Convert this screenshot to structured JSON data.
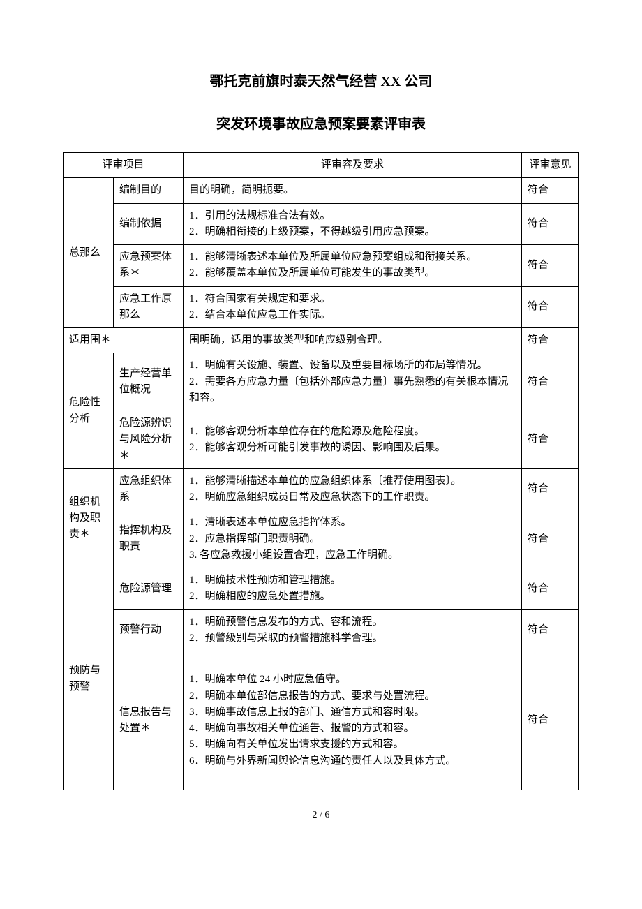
{
  "title_main": "鄂托克前旗时泰天然气经营 XX 公司",
  "title_sub": "突发环境事故应急预案要素评审表",
  "head_col1": "评审项目",
  "head_col2": "评审容及要求",
  "head_col3": "评审意见",
  "groups": [
    {
      "cat": "总那么",
      "rows": [
        {
          "sub": "编制目的",
          "req": "目的明确，简明扼要。",
          "op": "符合"
        },
        {
          "sub": "编制依据",
          "req": "1．引用的法规标准合法有效。\n2．明确相衔接的上级预案，不得越级引用应急预案。",
          "op": "符合"
        },
        {
          "sub": "应急预案体系＊",
          "req": "1．能够清晰表述本单位及所属单位应急预案组成和衔接关系。\n2．能够覆盖本单位及所属单位可能发生的事故类型。",
          "op": "符合"
        },
        {
          "sub": "应急工作原那么",
          "req": "1．符合国家有关规定和要求。\n2．结合本单位应急工作实际。",
          "op": "符合"
        }
      ]
    }
  ],
  "scope_row": {
    "cat": "适用围＊",
    "req": "围明确，适用的事故类型和响应级别合理。",
    "op": "符合"
  },
  "groups2": [
    {
      "cat": "危险性分析",
      "rows": [
        {
          "sub": "生产经营单位概况",
          "req": "1．明确有关设施、装置、设备以及重要目标场所的布局等情况。\n2．需要各方应急力量〔包括外部应急力量〕事先熟悉的有关根本情况和容。",
          "op": "符合"
        },
        {
          "sub": "危险源辨识与风险分析＊",
          "req": "1．能够客观分析本单位存在的危险源及危险程度。\n2．能够客观分析可能引发事故的诱因、影响围及后果。",
          "op": "符合"
        }
      ]
    },
    {
      "cat": "组织机构及职责＊",
      "rows": [
        {
          "sub": "应急组织体系",
          "req": "1．能够清晰描述本单位的应急组织体系〔推荐使用图表〕。\n2．明确应急组织成员日常及应急状态下的工作职责。",
          "op": "符合"
        },
        {
          "sub": "指挥机构及职责",
          "req": "1．清晰表述本单位应急指挥体系。\n2．应急指挥部门职责明确。\n3. 各应急救援小组设置合理，应急工作明确。",
          "op": "符合"
        }
      ]
    },
    {
      "cat": "预防与预警",
      "rows": [
        {
          "sub": "危险源管理",
          "req": "1．明确技术性预防和管理措施。\n2．明确相应的应急处置措施。",
          "op": "符合"
        },
        {
          "sub": "预警行动",
          "req": "1．明确预警信息发布的方式、容和流程。\n2．预警级别与采取的预警措施科学合理。",
          "op": "符合"
        },
        {
          "sub": "信息报告与处置＊",
          "req": "\n1．明确本单位 24 小时应急值守。\n2．明确本单位部信息报告的方式、要求与处置流程。\n3．明确事故信息上报的部门、通信方式和容时限。\n4．明确向事故相关单位通告、报警的方式和容。\n5．明确向有关单位发出请求支援的方式和容。\n6．明确与外界新闻舆论信息沟通的责任人以及具体方式。\n ",
          "op": "符合"
        }
      ]
    }
  ],
  "footer": "2 / 6"
}
